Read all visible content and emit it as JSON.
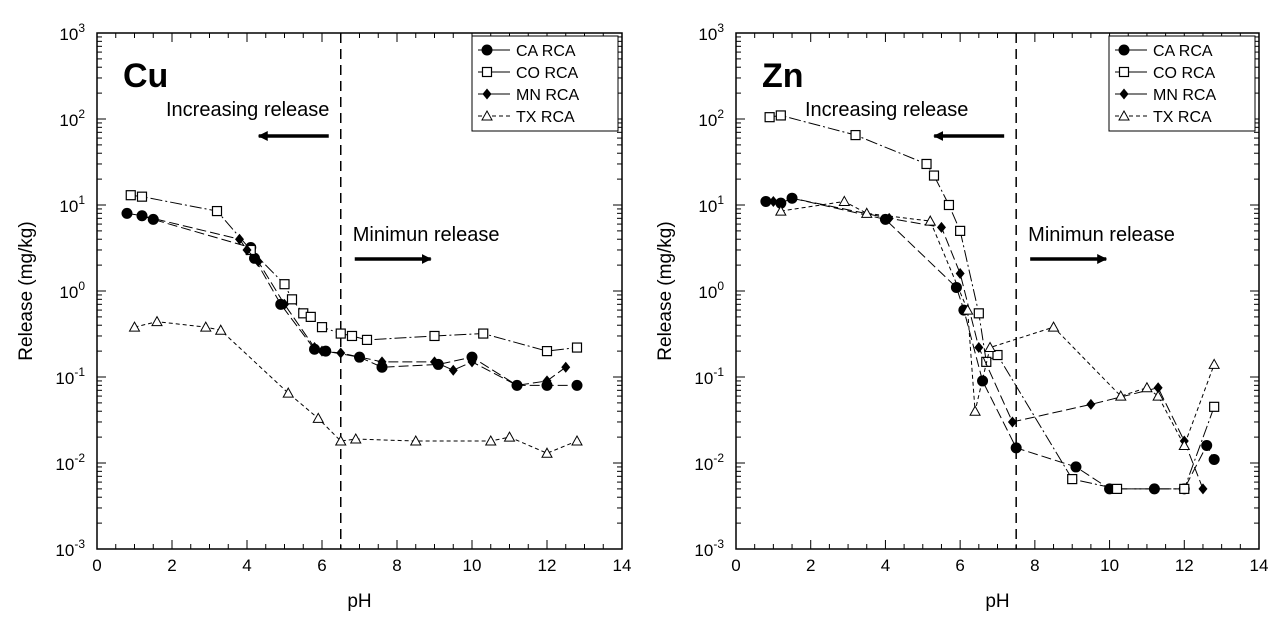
{
  "chart_data": [
    {
      "type": "scatter",
      "panel_label": "Cu",
      "xlabel": "pH",
      "ylabel": "Release (mg/kg)",
      "xlim": [
        0,
        14
      ],
      "x_ticks": [
        0,
        2,
        4,
        6,
        8,
        10,
        12,
        14
      ],
      "ylim": [
        0.001,
        1000
      ],
      "yscale": "log",
      "y_ticks": [
        {
          "value": 0.001,
          "base": "10",
          "exp": "-3"
        },
        {
          "value": 0.01,
          "base": "10",
          "exp": "-2"
        },
        {
          "value": 0.1,
          "base": "10",
          "exp": "-1"
        },
        {
          "value": 1,
          "base": "10",
          "exp": "0"
        },
        {
          "value": 10,
          "base": "10",
          "exp": "1"
        },
        {
          "value": 100,
          "base": "10",
          "exp": "2"
        },
        {
          "value": 1000,
          "base": "10",
          "exp": "3"
        }
      ],
      "grid": false,
      "legend_position": "top-right",
      "vline_x": 6.5,
      "annotations": {
        "left": "Increasing release",
        "right": "Minimun release"
      },
      "series": [
        {
          "name": "CA RCA",
          "marker": "circle",
          "dash": "10,4",
          "x": [
            0.8,
            1.2,
            1.5,
            4.1,
            4.2,
            4.9,
            5.8,
            6.1,
            7.0,
            7.6,
            9.1,
            10.0,
            11.2,
            12.0,
            12.8
          ],
          "y": [
            8,
            7.5,
            6.8,
            3.2,
            2.4,
            0.7,
            0.21,
            0.2,
            0.17,
            0.13,
            0.14,
            0.17,
            0.08,
            0.08,
            0.08
          ]
        },
        {
          "name": "CO RCA",
          "marker": "square",
          "dash": "12,3,2,3",
          "x": [
            0.9,
            1.2,
            3.2,
            4.1,
            5.0,
            5.2,
            5.5,
            5.7,
            6.0,
            6.5,
            6.8,
            7.2,
            9.0,
            10.3,
            12.0,
            12.8
          ],
          "y": [
            13,
            12.5,
            8.5,
            3,
            1.2,
            0.8,
            0.55,
            0.5,
            0.38,
            0.32,
            0.3,
            0.27,
            0.3,
            0.32,
            0.2,
            0.22
          ]
        },
        {
          "name": "MN RCA",
          "marker": "diamond",
          "dash": "10,4",
          "x": [
            1.2,
            3.8,
            4.0,
            4.3,
            5.0,
            5.8,
            6.0,
            6.5,
            7.6,
            9.0,
            9.5,
            10.0,
            11.2,
            12.0,
            12.5
          ],
          "y": [
            7.5,
            4.0,
            3.0,
            2.2,
            0.7,
            0.22,
            0.2,
            0.19,
            0.15,
            0.15,
            0.12,
            0.15,
            0.08,
            0.09,
            0.13
          ]
        },
        {
          "name": "TX RCA",
          "marker": "triangle",
          "dash": "4,3",
          "x": [
            1.0,
            1.6,
            2.9,
            3.3,
            5.1,
            5.9,
            6.5,
            6.9,
            8.5,
            10.5,
            11.0,
            12.0,
            12.8
          ],
          "y": [
            0.38,
            0.44,
            0.38,
            0.35,
            0.065,
            0.033,
            0.018,
            0.019,
            0.018,
            0.018,
            0.02,
            0.013,
            0.018
          ]
        }
      ]
    },
    {
      "type": "scatter",
      "panel_label": "Zn",
      "xlabel": "pH",
      "ylabel": "Release (mg/kg)",
      "xlim": [
        0,
        14
      ],
      "x_ticks": [
        0,
        2,
        4,
        6,
        8,
        10,
        12,
        14
      ],
      "ylim": [
        0.001,
        1000
      ],
      "yscale": "log",
      "y_ticks": [
        {
          "value": 0.001,
          "base": "10",
          "exp": "-3"
        },
        {
          "value": 0.01,
          "base": "10",
          "exp": "-2"
        },
        {
          "value": 0.1,
          "base": "10",
          "exp": "-1"
        },
        {
          "value": 1,
          "base": "10",
          "exp": "0"
        },
        {
          "value": 10,
          "base": "10",
          "exp": "1"
        },
        {
          "value": 100,
          "base": "10",
          "exp": "2"
        },
        {
          "value": 1000,
          "base": "10",
          "exp": "3"
        }
      ],
      "grid": false,
      "legend_position": "top-right",
      "vline_x": 7.5,
      "annotations": {
        "left": "Increasing release",
        "right": "Minimun release"
      },
      "series": [
        {
          "name": "CA RCA",
          "marker": "circle",
          "dash": "10,4",
          "x": [
            0.8,
            1.2,
            1.5,
            4.0,
            5.9,
            6.1,
            6.6,
            7.5,
            9.1,
            10.0,
            11.2,
            12.0,
            12.6,
            12.8
          ],
          "y": [
            11,
            10.5,
            12,
            6.8,
            1.1,
            0.6,
            0.09,
            0.015,
            0.009,
            0.005,
            0.005,
            0.005,
            0.016,
            0.011
          ]
        },
        {
          "name": "CO RCA",
          "marker": "square",
          "dash": "12,3,2,3",
          "x": [
            0.9,
            1.2,
            3.2,
            5.1,
            5.3,
            5.7,
            6.0,
            6.5,
            6.7,
            7.0,
            9.0,
            10.2,
            12.0,
            12.8
          ],
          "y": [
            105,
            110,
            65,
            30,
            22,
            10,
            5,
            0.55,
            0.15,
            0.18,
            0.0065,
            0.005,
            0.005,
            0.045
          ]
        },
        {
          "name": "MN RCA",
          "marker": "diamond",
          "dash": "10,4",
          "x": [
            1.0,
            1.5,
            4.1,
            5.5,
            6.0,
            6.5,
            7.4,
            9.5,
            11.3,
            12.0,
            12.5
          ],
          "y": [
            11,
            12,
            7,
            5.5,
            1.6,
            0.22,
            0.03,
            0.048,
            0.075,
            0.018,
            0.005
          ]
        },
        {
          "name": "TX RCA",
          "marker": "triangle",
          "dash": "4,3",
          "x": [
            1.2,
            2.9,
            3.5,
            5.2,
            6.2,
            6.4,
            6.8,
            8.5,
            10.3,
            11.0,
            11.3,
            12.0,
            12.8
          ],
          "y": [
            8.5,
            11,
            8,
            6.5,
            0.6,
            0.04,
            0.22,
            0.38,
            0.06,
            0.075,
            0.06,
            0.016,
            0.14
          ]
        }
      ]
    }
  ]
}
